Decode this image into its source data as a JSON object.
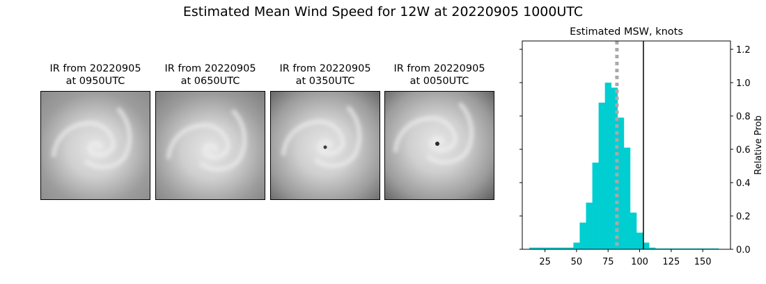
{
  "figure": {
    "title": "Estimated Mean Wind Speed for 12W at 20220905 1000UTC"
  },
  "ir_panels": [
    {
      "line1": "IR from 20220905",
      "line2": "at 0950UTC",
      "image": "satellite-ir-typhoon"
    },
    {
      "line1": "IR from 20220905",
      "line2": "at 0650UTC",
      "image": "satellite-ir-typhoon"
    },
    {
      "line1": "IR from 20220905",
      "line2": "at 0350UTC",
      "image": "satellite-ir-typhoon"
    },
    {
      "line1": "IR from 20220905",
      "line2": "at 0050UTC",
      "image": "satellite-ir-typhoon"
    }
  ],
  "chart_data": {
    "type": "bar",
    "title": "Estimated MSW, knots",
    "xlabel": "",
    "ylabel": "Relative Prob",
    "xlim": [
      7,
      172
    ],
    "ylim": [
      0,
      1.25
    ],
    "xticks": [
      25,
      50,
      75,
      100,
      125,
      150
    ],
    "yticks": [
      0.0,
      0.2,
      0.4,
      0.6,
      0.8,
      1.0,
      1.2
    ],
    "ytick_labels": [
      "0.0",
      "0.2",
      "0.4",
      "0.6",
      "0.8",
      "1.0",
      "1.2"
    ],
    "yaxis_side": "right",
    "bin_width": 5,
    "bins": [
      {
        "x": 15,
        "y": 0.01
      },
      {
        "x": 20,
        "y": 0.01
      },
      {
        "x": 25,
        "y": 0.01
      },
      {
        "x": 30,
        "y": 0.01
      },
      {
        "x": 35,
        "y": 0.01
      },
      {
        "x": 40,
        "y": 0.01
      },
      {
        "x": 45,
        "y": 0.01
      },
      {
        "x": 50,
        "y": 0.04
      },
      {
        "x": 55,
        "y": 0.16
      },
      {
        "x": 60,
        "y": 0.28
      },
      {
        "x": 65,
        "y": 0.52
      },
      {
        "x": 70,
        "y": 0.88
      },
      {
        "x": 75,
        "y": 1.0
      },
      {
        "x": 80,
        "y": 0.97
      },
      {
        "x": 85,
        "y": 0.79
      },
      {
        "x": 90,
        "y": 0.61
      },
      {
        "x": 95,
        "y": 0.22
      },
      {
        "x": 100,
        "y": 0.1
      },
      {
        "x": 105,
        "y": 0.04
      },
      {
        "x": 110,
        "y": 0.01
      },
      {
        "x": 115,
        "y": 0.005
      },
      {
        "x": 120,
        "y": 0.005
      },
      {
        "x": 125,
        "y": 0.005
      },
      {
        "x": 130,
        "y": 0.005
      },
      {
        "x": 135,
        "y": 0.005
      },
      {
        "x": 140,
        "y": 0.005
      },
      {
        "x": 145,
        "y": 0.005
      },
      {
        "x": 150,
        "y": 0.005
      },
      {
        "x": 155,
        "y": 0.005
      },
      {
        "x": 160,
        "y": 0.005
      }
    ],
    "dotted_line_x": 82,
    "solid_line_x": 103,
    "colors": {
      "bars": "#00ced1",
      "dotted_line": "#a9a9a9",
      "solid_line": "#000000"
    }
  }
}
